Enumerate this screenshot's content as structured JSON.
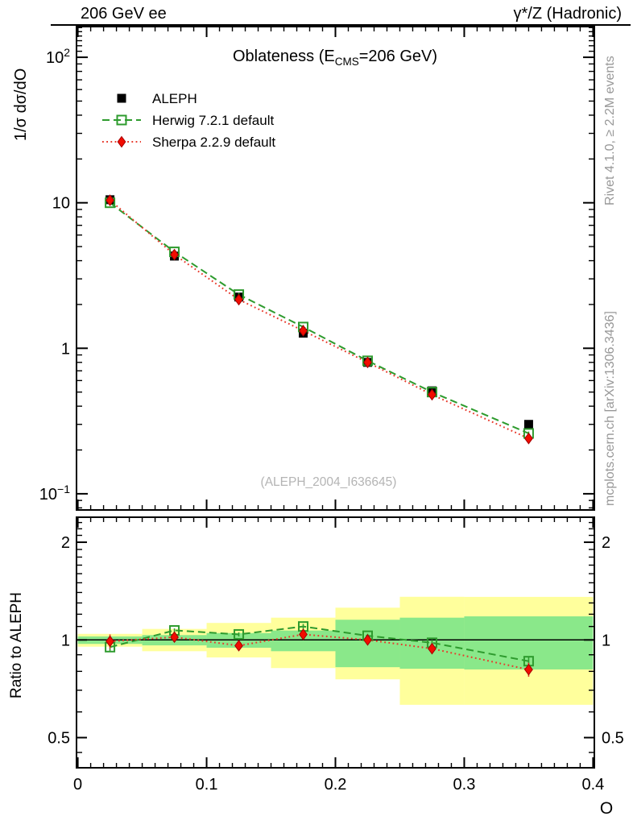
{
  "header": {
    "left": "206 GeV ee",
    "right": "γ*/Z (Hadronic)"
  },
  "titles": {
    "main_pre": "Oblateness (E",
    "main_sub": "CMS",
    "main_post": "=206 GeV)",
    "watermark": "(ALEPH_2004_I636645)"
  },
  "side_notes": {
    "top": "Rivet 4.1.0, ≥ 2.2M events",
    "bottom": "mcplots.cern.ch [arXiv:1306.3436]"
  },
  "axes": {
    "main_ylabel": "1/σ dσ/dO",
    "ratio_ylabel": "Ratio to ALEPH",
    "xlabel": "O",
    "x_ticks": [
      {
        "v": 0.0,
        "label": "0"
      },
      {
        "v": 0.1,
        "label": "0.1"
      },
      {
        "v": 0.2,
        "label": "0.2"
      },
      {
        "v": 0.3,
        "label": "0.3"
      },
      {
        "v": 0.4,
        "label": "0.4"
      }
    ],
    "main_y_ticks": [
      {
        "v": 100,
        "base": "10",
        "sup": "2"
      },
      {
        "v": 10,
        "base": "10",
        "sup": ""
      },
      {
        "v": 1,
        "base": "1",
        "sup": ""
      },
      {
        "v": 0.1,
        "base": "10",
        "sup": "−1"
      }
    ],
    "ratio_y_ticks": [
      {
        "v": 2,
        "label": "2"
      },
      {
        "v": 1,
        "label": "1"
      },
      {
        "v": 0.5,
        "label": "0.5"
      }
    ]
  },
  "legend": [
    {
      "label": "ALEPH",
      "marker": "filled-square",
      "line": "none",
      "color": "#000000"
    },
    {
      "label": "Herwig 7.2.1 default",
      "marker": "open-square",
      "line": "dashed",
      "color": "#2e9b2e"
    },
    {
      "label": "Sherpa 2.2.9 default",
      "marker": "filled-diamond",
      "line": "dotted",
      "color": "#e8392b"
    }
  ],
  "colors": {
    "aleph": "#000000",
    "herwig": "#2e9b2e",
    "sherpa_line": "#e8392b",
    "sherpa_fill": "#f20c00",
    "sherpa_edge": "#a50000",
    "band_yellow": "#ffff9c",
    "band_green": "#8ae88a",
    "frame": "#000000",
    "ratio_ref_line": "#000000"
  },
  "chart_data": [
    {
      "type": "line",
      "panel": "main",
      "title": "Oblateness (E_CMS = 206 GeV)",
      "xlabel": "O",
      "ylabel": "1/σ dσ/dO",
      "x_axis_range": [
        0.0,
        0.4
      ],
      "y_axis_log_range": [
        0.077,
        162
      ],
      "grid": false,
      "legend_position": "top-left",
      "bin_edges": [
        0.0,
        0.05,
        0.1,
        0.15,
        0.2,
        0.25,
        0.3,
        0.4
      ],
      "x": [
        0.025,
        0.075,
        0.125,
        0.175,
        0.225,
        0.275,
        0.35
      ],
      "series": [
        {
          "name": "ALEPH",
          "values": [
            10.5,
            4.3,
            2.25,
            1.27,
            0.8,
            0.51,
            0.3
          ],
          "err_frac": 0.04,
          "marker": "filled-square",
          "line": "none"
        },
        {
          "name": "Herwig 7.2.1 default",
          "values": [
            10.0,
            4.6,
            2.34,
            1.4,
            0.82,
            0.5,
            0.26
          ],
          "err_frac": 0.03,
          "marker": "open-square",
          "line": "dashed"
        },
        {
          "name": "Sherpa 2.2.9 default",
          "values": [
            10.4,
            4.4,
            2.16,
            1.32,
            0.8,
            0.48,
            0.24
          ],
          "err_frac": 0.05,
          "marker": "filled-diamond",
          "line": "dotted"
        }
      ]
    },
    {
      "type": "ratio",
      "panel": "ratio",
      "ylabel": "Ratio to ALEPH",
      "y_axis_log_range": [
        0.403,
        2.39
      ],
      "reference_level": 1.0,
      "bin_edges": [
        0.0,
        0.05,
        0.1,
        0.15,
        0.2,
        0.25,
        0.3,
        0.4
      ],
      "x": [
        0.025,
        0.075,
        0.125,
        0.175,
        0.225,
        0.275,
        0.35
      ],
      "series": [
        {
          "name": "Herwig 7.2.1 default",
          "values": [
            0.95,
            1.07,
            1.04,
            1.1,
            1.03,
            0.98,
            0.86
          ],
          "err": [
            0.03,
            0.015,
            0.015,
            0.02,
            0.015,
            0.02,
            0.03
          ],
          "marker": "open-square",
          "line": "dashed"
        },
        {
          "name": "Sherpa 2.2.9 default",
          "values": [
            0.99,
            1.02,
            0.96,
            1.04,
            1.0,
            0.94,
            0.81
          ],
          "err": [
            0.05,
            0.02,
            0.02,
            0.025,
            0.02,
            0.03,
            0.04
          ],
          "marker": "filled-diamond",
          "line": "dotted"
        }
      ],
      "bands": {
        "yellow_total_uncertainty": [
          [
            0.953,
            1.044
          ],
          [
            0.923,
            1.081
          ],
          [
            0.883,
            1.128
          ],
          [
            0.819,
            1.171
          ],
          [
            0.756,
            1.257
          ],
          [
            0.631,
            1.358
          ],
          [
            0.631,
            1.357
          ]
        ],
        "green_stat_uncertainty": [
          [
            0.972,
            1.025
          ],
          [
            0.962,
            1.035
          ],
          [
            0.946,
            1.05
          ],
          [
            0.923,
            1.069
          ],
          [
            0.824,
            1.154
          ],
          [
            0.815,
            1.171
          ],
          [
            0.811,
            1.182
          ]
        ]
      }
    }
  ]
}
